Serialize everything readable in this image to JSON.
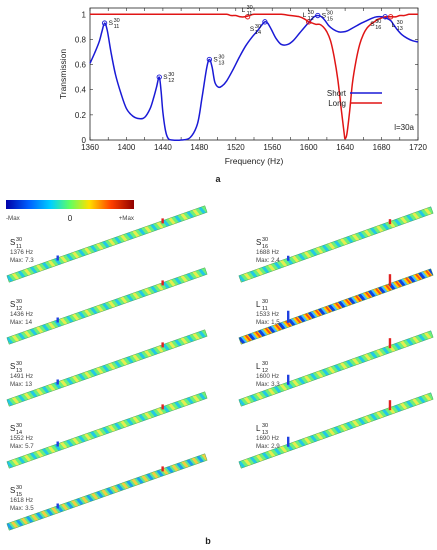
{
  "chart_data": {
    "type": "line",
    "xlabel": "Frequency (Hz)",
    "ylabel": "Transmission",
    "xlim": [
      1360,
      1720
    ],
    "ylim": [
      0,
      1.05
    ],
    "xticks": [
      "1360",
      "1380",
      "1400",
      "1420",
      "1440",
      "1460",
      "1480",
      "1500",
      "1520",
      "1540",
      "1560",
      "1580",
      "1600",
      "1620",
      "1640",
      "1660",
      "1680",
      "1700",
      "1720"
    ],
    "yticks": [
      "0",
      "0.2",
      "0.4",
      "0.6",
      "0.8",
      "1"
    ],
    "annotation": "l=30a",
    "legend_position": "right",
    "series": [
      {
        "name": "Short",
        "color": "#1a1ad6",
        "x": [
          1360,
          1365,
          1370,
          1373,
          1376,
          1379,
          1383,
          1388,
          1394,
          1400,
          1407,
          1414,
          1420,
          1426,
          1430,
          1433,
          1436,
          1438,
          1440,
          1443,
          1446,
          1450,
          1460,
          1470,
          1478,
          1483,
          1488,
          1491,
          1494,
          1497,
          1501,
          1505,
          1510,
          1517,
          1524,
          1531,
          1538,
          1544,
          1548,
          1552,
          1555,
          1559,
          1564,
          1570,
          1577,
          1583,
          1590,
          1597,
          1602,
          1606,
          1610,
          1614,
          1618,
          1622,
          1627,
          1633,
          1638,
          1643,
          1648,
          1653,
          1658,
          1664,
          1670,
          1675,
          1680,
          1685,
          1690,
          1693,
          1697,
          1702,
          1708,
          1714,
          1720
        ],
        "y": [
          0.61,
          0.69,
          0.78,
          0.86,
          0.93,
          0.87,
          0.7,
          0.52,
          0.37,
          0.25,
          0.19,
          0.17,
          0.18,
          0.25,
          0.34,
          0.42,
          0.5,
          0.39,
          0.22,
          0.07,
          0.01,
          0.0,
          0.0,
          0.02,
          0.13,
          0.34,
          0.57,
          0.64,
          0.58,
          0.46,
          0.42,
          0.43,
          0.47,
          0.56,
          0.66,
          0.75,
          0.82,
          0.87,
          0.91,
          0.94,
          0.93,
          0.88,
          0.81,
          0.76,
          0.76,
          0.79,
          0.85,
          0.91,
          0.95,
          0.98,
          0.99,
          0.98,
          0.95,
          0.91,
          0.88,
          0.86,
          0.86,
          0.87,
          0.89,
          0.91,
          0.93,
          0.95,
          0.97,
          0.98,
          0.98,
          0.97,
          0.95,
          0.92,
          0.88,
          0.84,
          0.81,
          0.79,
          0.78
        ]
      },
      {
        "name": "Long",
        "color": "#e01515",
        "x": [
          1360,
          1380,
          1400,
          1420,
          1440,
          1460,
          1480,
          1500,
          1510,
          1515,
          1520,
          1525,
          1530,
          1535,
          1540,
          1550,
          1560,
          1570,
          1580,
          1590,
          1596,
          1600,
          1604,
          1608,
          1612,
          1616,
          1620,
          1624,
          1628,
          1632,
          1636,
          1639,
          1640,
          1642,
          1645,
          1648,
          1652,
          1656,
          1660,
          1664,
          1668,
          1672,
          1676,
          1680,
          1684,
          1688,
          1692,
          1696,
          1700,
          1705,
          1710,
          1715,
          1720
        ],
        "y": [
          1.0,
          1.0,
          1.0,
          1.0,
          1.0,
          1.0,
          1.0,
          1.0,
          1.0,
          0.99,
          0.99,
          0.98,
          0.98,
          0.99,
          1.0,
          1.0,
          1.0,
          1.0,
          0.99,
          0.98,
          0.96,
          0.94,
          0.93,
          0.92,
          0.92,
          0.9,
          0.86,
          0.79,
          0.66,
          0.48,
          0.23,
          0.05,
          0.01,
          0.05,
          0.23,
          0.45,
          0.63,
          0.76,
          0.84,
          0.89,
          0.92,
          0.94,
          0.96,
          0.97,
          0.98,
          0.98,
          0.98,
          0.98,
          0.99,
          0.99,
          1.0,
          1.0,
          1.0
        ]
      }
    ]
  },
  "peak_labels": [
    {
      "id": "S11",
      "name": "S",
      "sup": "30",
      "sub": "11",
      "x": 1376,
      "y": 0.93,
      "side": "right",
      "color": "#1a1ad6"
    },
    {
      "id": "S12",
      "name": "S",
      "sup": "30",
      "sub": "12",
      "x": 1436,
      "y": 0.5,
      "side": "right",
      "color": "#1a1ad6"
    },
    {
      "id": "S13",
      "name": "S",
      "sup": "30",
      "sub": "13",
      "x": 1491,
      "y": 0.64,
      "side": "right",
      "color": "#1a1ad6"
    },
    {
      "id": "S14",
      "name": "S",
      "sup": "30",
      "sub": "14",
      "x": 1552,
      "y": 0.94,
      "side": "left",
      "color": "#1a1ad6"
    },
    {
      "id": "S15",
      "name": "S",
      "sup": "30",
      "sub": "15",
      "x": 1610,
      "y": 0.99,
      "side": "right",
      "color": "#1a1ad6"
    },
    {
      "id": "S16",
      "name": "S",
      "sup": "30",
      "sub": "16",
      "x": 1684,
      "y": 0.98,
      "side": "left",
      "color": "#1a1ad6"
    },
    {
      "id": "L11",
      "name": "L",
      "sup": "30",
      "sub": "11",
      "x": 1533,
      "y": 0.98,
      "side": "above",
      "color": "#e01515"
    },
    {
      "id": "L12",
      "name": "L",
      "sup": "30",
      "sub": "12",
      "x": 1600,
      "y": 0.94,
      "side": "above",
      "color": "#e01515"
    },
    {
      "id": "L13",
      "name": "L",
      "sup": "30",
      "sub": "13",
      "x": 1690,
      "y": 0.98,
      "side": "below",
      "color": "#e01515"
    }
  ],
  "panel_labels": {
    "a": "a",
    "b": "b"
  },
  "colorbar": {
    "min_label": "-Max",
    "mid_label": "0",
    "max_label": "+Max"
  },
  "modes_left": [
    {
      "name": "S",
      "sup": "30",
      "sub": "11",
      "freq": "1376 Hz",
      "max": "Max: 7.3",
      "pattern": "green"
    },
    {
      "name": "S",
      "sup": "30",
      "sub": "12",
      "freq": "1436 Hz",
      "max": "Max: 14",
      "pattern": "green"
    },
    {
      "name": "S",
      "sup": "30",
      "sub": "13",
      "freq": "1491 Hz",
      "max": "Max: 13",
      "pattern": "green"
    },
    {
      "name": "S",
      "sup": "30",
      "sub": "14",
      "freq": "1552 Hz",
      "max": "Max: 5.7",
      "pattern": "green"
    },
    {
      "name": "S",
      "sup": "30",
      "sub": "15",
      "freq": "1618 Hz",
      "max": "Max: 3.5",
      "pattern": "dense"
    }
  ],
  "modes_right": [
    {
      "name": "S",
      "sup": "30",
      "sub": "16",
      "freq": "1688 Hz",
      "max": "Max: 2.4",
      "pattern": "green"
    },
    {
      "name": "L",
      "sup": "30",
      "sub": "11",
      "freq": "1533 Hz",
      "max": "Max: 1.5",
      "pattern": "strong"
    },
    {
      "name": "L",
      "sup": "30",
      "sub": "12",
      "freq": "1600 Hz",
      "max": "Max: 3.3",
      "pattern": "green"
    },
    {
      "name": "L",
      "sup": "30",
      "sub": "13",
      "freq": "1690 Hz",
      "max": "Max: 2.9",
      "pattern": "green"
    }
  ]
}
